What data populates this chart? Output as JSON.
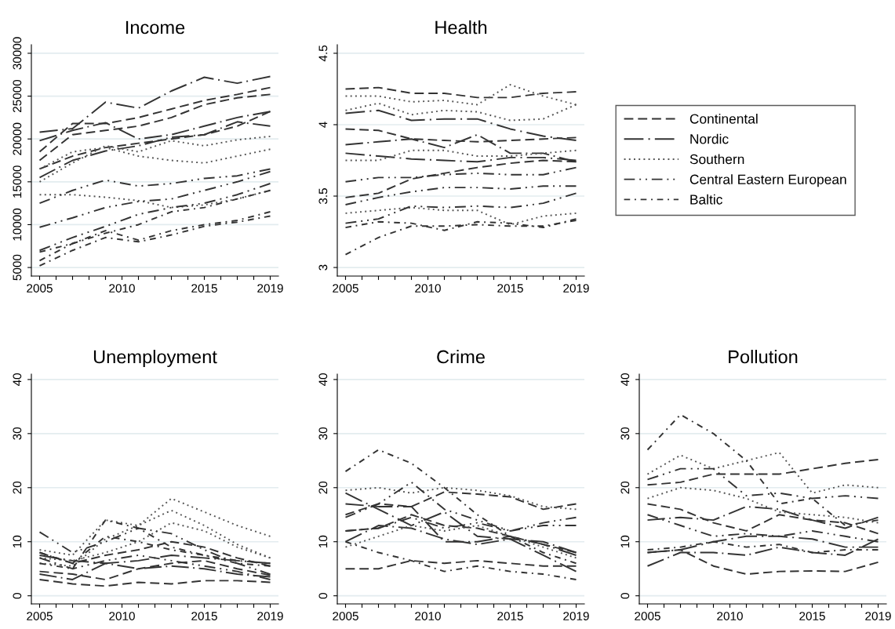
{
  "chart_data": [
    {
      "type": "line",
      "title": "Income",
      "x": [
        2005,
        2007,
        2009,
        2011,
        2013,
        2015,
        2017,
        2019
      ],
      "xlim": [
        2004.5,
        2019.5
      ],
      "xticks": [
        2005,
        {
          "value": 2006,
          "label": null
        },
        {
          "value": 2007,
          "label": null
        },
        {
          "value": 2008,
          "label": null
        },
        {
          "value": 2009,
          "label": null
        },
        2010,
        {
          "value": 2011,
          "label": null
        },
        {
          "value": 2012,
          "label": null
        },
        {
          "value": 2013,
          "label": null
        },
        {
          "value": 2014,
          "label": null
        },
        2015,
        {
          "value": 2016,
          "label": null
        },
        {
          "value": 2017,
          "label": null
        },
        {
          "value": 2018,
          "label": null
        },
        2019
      ],
      "ylim": [
        4000,
        31000
      ],
      "yticks": [
        5000,
        10000,
        15000,
        20000,
        25000,
        30000
      ],
      "grid": "y",
      "series": [
        {
          "color": "#333333",
          "line_style": "dashed",
          "values": [
            18500,
            21800,
            21800,
            22500,
            23500,
            24500,
            25200,
            26000
          ]
        },
        {
          "color": "#333333",
          "line_style": "dashed",
          "values": [
            17500,
            20500,
            21000,
            21500,
            22500,
            24000,
            24800,
            25200
          ]
        },
        {
          "color": "#333333",
          "line_style": "dashed",
          "values": [
            16500,
            18000,
            19000,
            19500,
            20000,
            20500,
            21500,
            23200
          ]
        },
        {
          "color": "#333333",
          "line_style": "longdashdot",
          "values": [
            20800,
            21200,
            24300,
            23600,
            25600,
            27200,
            26500,
            27300
          ]
        },
        {
          "color": "#333333",
          "line_style": "longdashdot",
          "values": [
            19800,
            21000,
            21900,
            20000,
            20500,
            21500,
            22500,
            23200
          ]
        },
        {
          "color": "#333333",
          "line_style": "longdashdot",
          "values": [
            15500,
            17500,
            18600,
            19200,
            20200,
            20500,
            22000,
            21500
          ]
        },
        {
          "color": "#555555",
          "line_style": "dotted",
          "values": [
            16500,
            18500,
            19000,
            18000,
            17500,
            17200,
            18000,
            18800
          ]
        },
        {
          "color": "#555555",
          "line_style": "dotted",
          "values": [
            15000,
            17200,
            19200,
            18500,
            19800,
            19200,
            19900,
            20300
          ]
        },
        {
          "color": "#555555",
          "line_style": "dotted",
          "values": [
            13500,
            13500,
            13200,
            12800,
            12000,
            12300,
            13000,
            14000
          ]
        },
        {
          "color": "#333333",
          "line_style": "dashdotdot",
          "values": [
            12500,
            14000,
            15200,
            14500,
            14800,
            15400,
            15700,
            16500
          ]
        },
        {
          "color": "#333333",
          "line_style": "dashdotdot",
          "values": [
            9700,
            10800,
            12000,
            12700,
            13000,
            14000,
            15000,
            16200
          ]
        },
        {
          "color": "#333333",
          "line_style": "dashdotdot",
          "values": [
            7000,
            8500,
            9800,
            11200,
            12000,
            12500,
            13500,
            14800
          ]
        },
        {
          "color": "#333333",
          "line_style": "dashdot",
          "values": [
            5800,
            7800,
            9300,
            8200,
            9300,
            10000,
            10500,
            11500
          ]
        },
        {
          "color": "#333333",
          "line_style": "dashdot",
          "values": [
            6800,
            7800,
            9000,
            10000,
            11500,
            12000,
            13000,
            14000
          ]
        },
        {
          "color": "#333333",
          "line_style": "dashdot",
          "values": [
            5200,
            7000,
            8500,
            8000,
            8800,
            9800,
            10300,
            11000
          ]
        }
      ]
    },
    {
      "type": "line",
      "title": "Health",
      "x": [
        2005,
        2007,
        2009,
        2011,
        2013,
        2015,
        2017,
        2019
      ],
      "xlim": [
        2004.5,
        2019.5
      ],
      "xticks": [
        2005,
        {
          "value": 2006,
          "label": null
        },
        {
          "value": 2007,
          "label": null
        },
        {
          "value": 2008,
          "label": null
        },
        {
          "value": 2009,
          "label": null
        },
        2010,
        {
          "value": 2011,
          "label": null
        },
        {
          "value": 2012,
          "label": null
        },
        {
          "value": 2013,
          "label": null
        },
        {
          "value": 2014,
          "label": null
        },
        2015,
        {
          "value": 2016,
          "label": null
        },
        {
          "value": 2017,
          "label": null
        },
        {
          "value": 2018,
          "label": null
        },
        2019
      ],
      "ylim": [
        2.94,
        4.56
      ],
      "yticks": [
        {
          "value": 3,
          "label": "3"
        },
        3.5,
        {
          "value": 4,
          "label": "4"
        },
        4.5
      ],
      "grid": "y",
      "legend": "right",
      "series": [
        {
          "name": "Continental",
          "color": "#333333",
          "line_style": "dashed",
          "values": [
            4.25,
            4.26,
            4.22,
            4.22,
            4.19,
            4.19,
            4.22,
            4.23
          ]
        },
        {
          "color": "#333333",
          "line_style": "dashed",
          "values": [
            3.97,
            3.96,
            3.9,
            3.89,
            3.88,
            3.89,
            3.9,
            3.91
          ]
        },
        {
          "color": "#333333",
          "line_style": "dashed",
          "values": [
            3.49,
            3.52,
            3.62,
            3.66,
            3.7,
            3.73,
            3.75,
            3.74
          ]
        },
        {
          "name": "Nordic",
          "color": "#333333",
          "line_style": "longdashdot",
          "values": [
            4.08,
            4.1,
            4.03,
            4.04,
            4.04,
            3.97,
            3.92,
            3.89
          ]
        },
        {
          "color": "#333333",
          "line_style": "longdashdot",
          "values": [
            3.86,
            3.88,
            3.9,
            3.84,
            3.93,
            3.8,
            3.8,
            3.74
          ]
        },
        {
          "color": "#333333",
          "line_style": "longdashdot",
          "values": [
            3.8,
            3.78,
            3.76,
            3.75,
            3.74,
            3.77,
            3.77,
            3.75
          ]
        },
        {
          "name": "Southern",
          "color": "#555555",
          "line_style": "dotted",
          "values": [
            4.2,
            4.2,
            4.16,
            4.17,
            4.14,
            4.28,
            4.2,
            4.14
          ]
        },
        {
          "color": "#555555",
          "line_style": "dotted",
          "values": [
            4.1,
            4.15,
            4.07,
            4.1,
            4.09,
            4.03,
            4.04,
            4.14
          ]
        },
        {
          "color": "#555555",
          "line_style": "dotted",
          "values": [
            3.75,
            3.75,
            3.82,
            3.82,
            3.78,
            3.78,
            3.8,
            3.82
          ]
        },
        {
          "color": "#555555",
          "line_style": "dotted",
          "values": [
            3.38,
            3.4,
            3.42,
            3.4,
            3.4,
            3.3,
            3.36,
            3.38
          ]
        },
        {
          "name": "Central Eastern European",
          "color": "#333333",
          "line_style": "dashdotdot",
          "values": [
            3.6,
            3.63,
            3.63,
            3.65,
            3.66,
            3.65,
            3.65,
            3.7
          ]
        },
        {
          "color": "#333333",
          "line_style": "dashdotdot",
          "values": [
            3.44,
            3.49,
            3.53,
            3.56,
            3.56,
            3.55,
            3.57,
            3.57
          ]
        },
        {
          "color": "#333333",
          "line_style": "dashdotdot",
          "values": [
            3.31,
            3.34,
            3.43,
            3.42,
            3.43,
            3.42,
            3.45,
            3.52
          ]
        },
        {
          "name": "Baltic",
          "color": "#333333",
          "line_style": "dashdot",
          "values": [
            3.09,
            3.21,
            3.29,
            3.29,
            3.3,
            3.29,
            3.29,
            3.33
          ]
        },
        {
          "color": "#333333",
          "line_style": "dashdot",
          "values": [
            3.28,
            3.32,
            3.31,
            3.26,
            3.32,
            3.31,
            3.28,
            3.34
          ]
        }
      ]
    },
    {
      "type": "line",
      "title": "Unemployment",
      "x": [
        2005,
        2007,
        2009,
        2011,
        2013,
        2015,
        2017,
        2019
      ],
      "xlim": [
        2004.5,
        2019.5
      ],
      "xticks": [
        2005,
        {
          "value": 2006,
          "label": null
        },
        {
          "value": 2007,
          "label": null
        },
        {
          "value": 2008,
          "label": null
        },
        {
          "value": 2009,
          "label": null
        },
        2010,
        {
          "value": 2011,
          "label": null
        },
        {
          "value": 2012,
          "label": null
        },
        {
          "value": 2013,
          "label": null
        },
        {
          "value": 2014,
          "label": null
        },
        2015,
        {
          "value": 2016,
          "label": null
        },
        {
          "value": 2017,
          "label": null
        },
        {
          "value": 2018,
          "label": null
        },
        2019
      ],
      "ylim": [
        -1.5,
        41
      ],
      "yticks": [
        0,
        10,
        20,
        30,
        40
      ],
      "grid": "y",
      "series": [
        {
          "color": "#333333",
          "line_style": "dashed",
          "values": [
            8.0,
            6.0,
            7.5,
            8.5,
            10.0,
            9.0,
            7.0,
            5.5
          ]
        },
        {
          "color": "#333333",
          "line_style": "dashed",
          "values": [
            4.5,
            4.0,
            3.0,
            5.0,
            6.0,
            6.5,
            5.0,
            3.8
          ]
        },
        {
          "color": "#333333",
          "line_style": "dashed",
          "values": [
            3.0,
            2.2,
            1.8,
            2.5,
            2.2,
            2.8,
            2.8,
            2.5
          ]
        },
        {
          "color": "#333333",
          "line_style": "longdashdot",
          "values": [
            7.5,
            6.5,
            6.0,
            6.5,
            7.5,
            7.0,
            6.5,
            6.0
          ]
        },
        {
          "color": "#333333",
          "line_style": "longdashdot",
          "values": [
            4.0,
            3.0,
            6.0,
            5.0,
            5.5,
            5.0,
            4.0,
            3.5
          ]
        },
        {
          "color": "#555555",
          "line_style": "dotted",
          "values": [
            8.5,
            7.5,
            14.0,
            13.0,
            18.0,
            15.5,
            13.0,
            11.0
          ]
        },
        {
          "color": "#555555",
          "line_style": "dotted",
          "values": [
            6.0,
            5.5,
            10.5,
            13.0,
            15.8,
            13.0,
            9.5,
            7.0
          ]
        },
        {
          "color": "#555555",
          "line_style": "dotted",
          "values": [
            7.0,
            6.5,
            8.0,
            10.0,
            13.5,
            12.0,
            9.0,
            7.0
          ]
        },
        {
          "color": "#333333",
          "line_style": "dashdotdot",
          "values": [
            11.8,
            8.0,
            10.0,
            12.5,
            11.5,
            8.5,
            6.0,
            4.0
          ]
        },
        {
          "color": "#333333",
          "line_style": "dashdotdot",
          "values": [
            7.0,
            5.0,
            6.5,
            7.5,
            6.5,
            5.5,
            4.5,
            3.0
          ]
        },
        {
          "color": "#333333",
          "line_style": "dashdot",
          "values": [
            6.0,
            5.0,
            14.0,
            12.5,
            9.0,
            7.5,
            6.5,
            6.0
          ]
        },
        {
          "color": "#333333",
          "line_style": "dashdot",
          "values": [
            8.0,
            6.0,
            11.0,
            10.0,
            8.5,
            7.5,
            6.0,
            5.5
          ]
        }
      ]
    },
    {
      "type": "line",
      "title": "Crime",
      "x": [
        2005,
        2007,
        2009,
        2011,
        2013,
        2015,
        2017,
        2019
      ],
      "xlim": [
        2004.5,
        2019.5
      ],
      "xticks": [
        2005,
        {
          "value": 2006,
          "label": null
        },
        {
          "value": 2007,
          "label": null
        },
        {
          "value": 2008,
          "label": null
        },
        {
          "value": 2009,
          "label": null
        },
        2010,
        {
          "value": 2011,
          "label": null
        },
        {
          "value": 2012,
          "label": null
        },
        {
          "value": 2013,
          "label": null
        },
        {
          "value": 2014,
          "label": null
        },
        2015,
        {
          "value": 2016,
          "label": null
        },
        {
          "value": 2017,
          "label": null
        },
        {
          "value": 2018,
          "label": null
        },
        2019
      ],
      "ylim": [
        -1.5,
        41
      ],
      "yticks": [
        0,
        10,
        20,
        30,
        40
      ],
      "grid": "y",
      "series": [
        {
          "color": "#333333",
          "line_style": "dashed",
          "values": [
            15.0,
            17.0,
            16.5,
            19.2,
            18.8,
            18.3,
            16.0,
            17.0
          ]
        },
        {
          "color": "#333333",
          "line_style": "dashed",
          "values": [
            12.0,
            12.5,
            15.0,
            13.0,
            12.5,
            11.0,
            9.5,
            8.0
          ]
        },
        {
          "color": "#333333",
          "line_style": "dashed",
          "values": [
            5.0,
            5.0,
            6.5,
            6.0,
            6.5,
            6.0,
            5.5,
            5.5
          ]
        },
        {
          "color": "#333333",
          "line_style": "longdashdot",
          "values": [
            19.0,
            16.0,
            13.0,
            15.5,
            11.0,
            10.5,
            10.0,
            8.0
          ]
        },
        {
          "color": "#333333",
          "line_style": "longdashdot",
          "values": [
            17.0,
            16.5,
            16.5,
            10.0,
            10.0,
            11.0,
            9.5,
            7.5
          ]
        },
        {
          "color": "#333333",
          "line_style": "longdashdot",
          "values": [
            10.0,
            13.0,
            12.5,
            10.5,
            9.5,
            10.5,
            7.5,
            4.5
          ]
        },
        {
          "color": "#555555",
          "line_style": "dotted",
          "values": [
            19.5,
            20.0,
            19.0,
            20.0,
            19.5,
            18.5,
            16.5,
            16.0
          ]
        },
        {
          "color": "#555555",
          "line_style": "dotted",
          "values": [
            9.0,
            11.0,
            13.0,
            12.0,
            13.0,
            11.0,
            9.0,
            7.0
          ]
        },
        {
          "color": "#333333",
          "line_style": "dashdotdot",
          "values": [
            14.5,
            17.0,
            21.0,
            16.0,
            14.0,
            12.0,
            13.5,
            14.5
          ]
        },
        {
          "color": "#333333",
          "line_style": "dashdotdot",
          "values": [
            12.0,
            12.5,
            14.5,
            12.5,
            13.5,
            12.0,
            13.0,
            13.0
          ]
        },
        {
          "color": "#333333",
          "line_style": "dashdot",
          "values": [
            23.0,
            27.0,
            24.5,
            20.0,
            15.0,
            11.0,
            8.0,
            6.0
          ]
        },
        {
          "color": "#333333",
          "line_style": "dashdot",
          "values": [
            10.0,
            8.0,
            6.5,
            4.5,
            5.5,
            4.5,
            4.0,
            3.0
          ]
        }
      ]
    },
    {
      "type": "line",
      "title": "Pollution",
      "x": [
        2005,
        2007,
        2009,
        2011,
        2013,
        2015,
        2017,
        2019
      ],
      "xlim": [
        2004.5,
        2019.5
      ],
      "xticks": [
        2005,
        {
          "value": 2006,
          "label": null
        },
        {
          "value": 2007,
          "label": null
        },
        {
          "value": 2008,
          "label": null
        },
        {
          "value": 2009,
          "label": null
        },
        2010,
        {
          "value": 2011,
          "label": null
        },
        {
          "value": 2012,
          "label": null
        },
        {
          "value": 2013,
          "label": null
        },
        {
          "value": 2014,
          "label": null
        },
        2015,
        {
          "value": 2016,
          "label": null
        },
        {
          "value": 2017,
          "label": null
        },
        {
          "value": 2018,
          "label": null
        },
        2019
      ],
      "ylim": [
        -1.5,
        41
      ],
      "yticks": [
        0,
        10,
        20,
        30,
        40
      ],
      "grid": "y",
      "series": [
        {
          "color": "#333333",
          "line_style": "dashed",
          "values": [
            20.5,
            21.0,
            22.5,
            22.5,
            22.5,
            23.5,
            24.5,
            25.2
          ]
        },
        {
          "color": "#333333",
          "line_style": "dashed",
          "values": [
            8.0,
            8.5,
            5.5,
            4.0,
            4.5,
            4.6,
            4.5,
            6.2
          ]
        },
        {
          "color": "#333333",
          "line_style": "dashed",
          "values": [
            17.0,
            16.0,
            13.5,
            12.0,
            15.0,
            14.0,
            13.5,
            11.5
          ]
        },
        {
          "color": "#333333",
          "line_style": "longdashdot",
          "values": [
            14.0,
            14.5,
            14.0,
            16.5,
            16.0,
            14.0,
            12.5,
            14.5
          ]
        },
        {
          "color": "#333333",
          "line_style": "longdashdot",
          "values": [
            5.5,
            8.0,
            8.0,
            7.5,
            9.0,
            8.0,
            7.5,
            10.5
          ]
        },
        {
          "color": "#333333",
          "line_style": "longdashdot",
          "values": [
            8.0,
            8.5,
            10.0,
            11.0,
            11.0,
            10.5,
            9.0,
            9.0
          ]
        },
        {
          "color": "#555555",
          "line_style": "dotted",
          "values": [
            22.5,
            26.0,
            23.5,
            25.0,
            26.5,
            19.0,
            20.5,
            20.0
          ]
        },
        {
          "color": "#555555",
          "line_style": "dotted",
          "values": [
            18.0,
            20.0,
            19.5,
            18.0,
            15.5,
            15.0,
            14.5,
            13.5
          ]
        },
        {
          "color": "#333333",
          "line_style": "dashdotdot",
          "values": [
            21.5,
            23.5,
            23.5,
            18.5,
            19.0,
            18.0,
            18.5,
            18.0
          ]
        },
        {
          "color": "#333333",
          "line_style": "dashdotdot",
          "values": [
            15.0,
            13.0,
            11.0,
            11.5,
            11.0,
            12.0,
            11.0,
            10.0
          ]
        },
        {
          "color": "#333333",
          "line_style": "dashdot",
          "values": [
            27.0,
            33.5,
            30.0,
            25.0,
            17.0,
            18.0,
            13.0,
            14.0
          ]
        },
        {
          "color": "#333333",
          "line_style": "dashdot",
          "values": [
            8.5,
            9.0,
            10.0,
            9.0,
            9.5,
            8.0,
            8.5,
            8.5
          ]
        }
      ]
    }
  ]
}
